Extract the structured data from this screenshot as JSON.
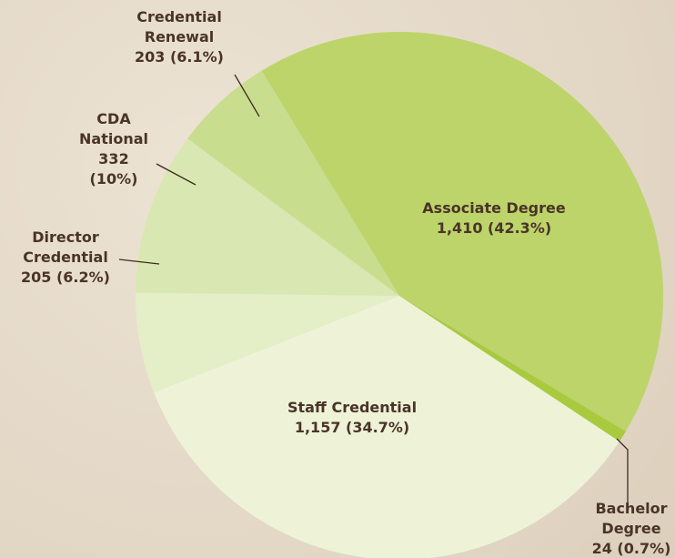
{
  "chart_data": {
    "type": "pie",
    "categories": [
      "Associate Degree",
      "Bachelor Degree",
      "Staff Credential",
      "Director Credential",
      "CDA National",
      "Credential Renewal"
    ],
    "values": [
      1410,
      24,
      1157,
      205,
      332,
      203
    ],
    "value_labels": [
      "1,410 (42.3%)",
      "24 (0.7%)",
      "1,157 (34.7%)",
      "205 (6.2%)",
      "332 (10%)",
      "203 (6.1%)"
    ],
    "colors": [
      "#bdd46b",
      "#a9ca3f",
      "#eef3d8",
      "#e4eec7",
      "#d9e8b2",
      "#c9dd8e"
    ]
  }
}
